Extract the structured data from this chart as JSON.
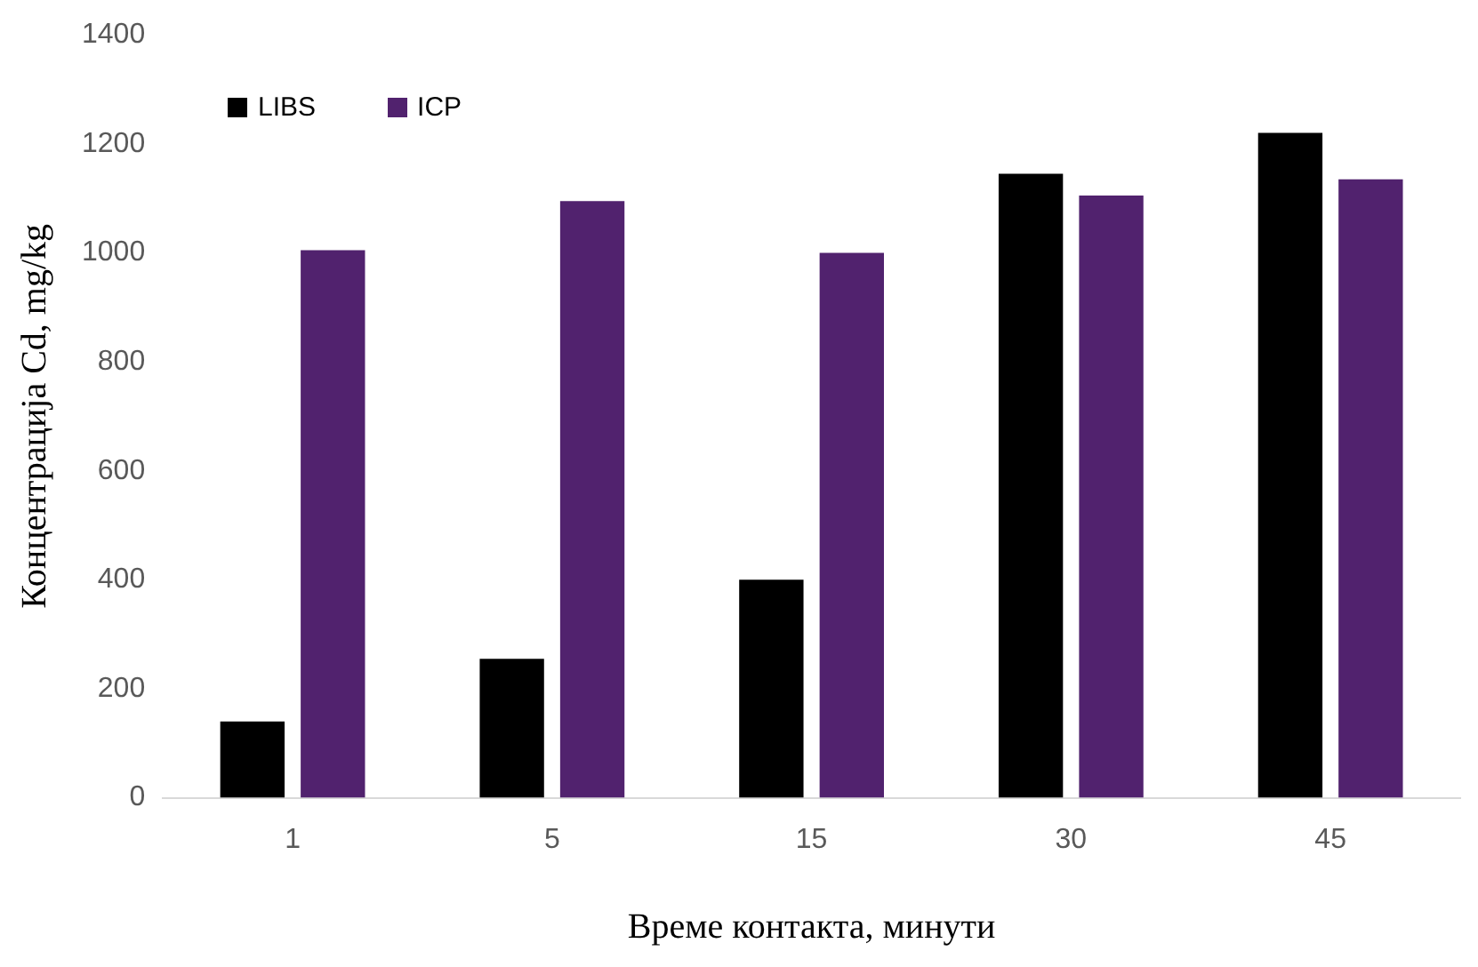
{
  "chart_data": {
    "type": "bar",
    "xlabel": "Време контакта, минути",
    "ylabel": "Концентрација Cd, mg/kg",
    "categories": [
      "1",
      "5",
      "15",
      "30",
      "45"
    ],
    "series": [
      {
        "name": "LIBS",
        "color": "#000000",
        "values": [
          140,
          255,
          400,
          1145,
          1220
        ]
      },
      {
        "name": "ICP",
        "color": "#51226e",
        "values": [
          1005,
          1095,
          1000,
          1105,
          1135
        ]
      }
    ],
    "ylim": [
      0,
      1400
    ],
    "yticks": [
      0,
      200,
      400,
      600,
      800,
      1000,
      1200,
      1400
    ],
    "grid": false,
    "legend": "top left"
  }
}
